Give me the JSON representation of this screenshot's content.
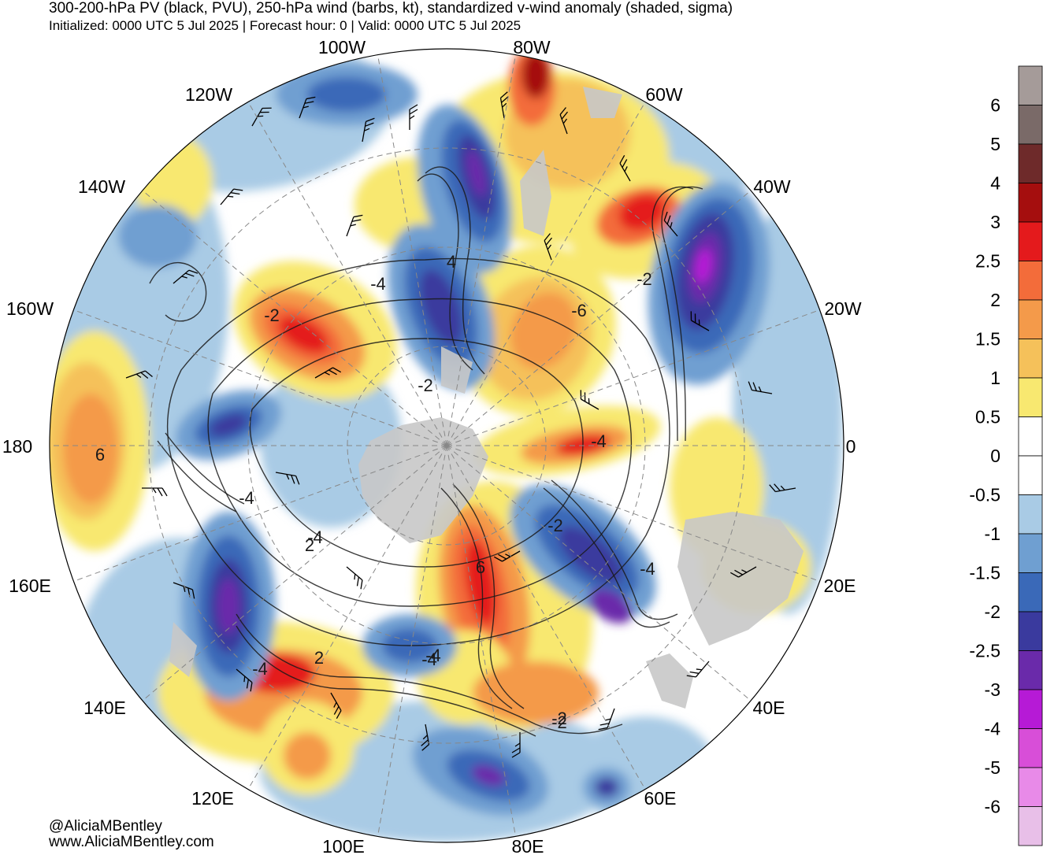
{
  "title": "300-200-hPa PV (black, PVU), 250-hPa wind (barbs, kt), standardized v-wind anomaly (shaded, sigma)",
  "subtitle": "Initialized: 0000 UTC 5 Jul 2025 | Forecast hour: 0 | Valid: 0000 UTC 5 Jul 2025",
  "credits": [
    "@AliciaMBentley",
    "www.AliciaMBentley.com"
  ],
  "longitude_labels": [
    {
      "text": "100W",
      "name": "lon-label-100w"
    },
    {
      "text": "80W",
      "name": "lon-label-80w"
    },
    {
      "text": "120W",
      "name": "lon-label-120w"
    },
    {
      "text": "60W",
      "name": "lon-label-60w"
    },
    {
      "text": "140W",
      "name": "lon-label-140w"
    },
    {
      "text": "40W",
      "name": "lon-label-40w"
    },
    {
      "text": "160W",
      "name": "lon-label-160w"
    },
    {
      "text": "20W",
      "name": "lon-label-20w"
    },
    {
      "text": "180",
      "name": "lon-label-180"
    },
    {
      "text": "0",
      "name": "lon-label-0"
    },
    {
      "text": "160E",
      "name": "lon-label-160e"
    },
    {
      "text": "20E",
      "name": "lon-label-20e"
    },
    {
      "text": "140E",
      "name": "lon-label-140e"
    },
    {
      "text": "40E",
      "name": "lon-label-40e"
    },
    {
      "text": "120E",
      "name": "lon-label-120e"
    },
    {
      "text": "60E",
      "name": "lon-label-60e"
    },
    {
      "text": "100E",
      "name": "lon-label-100e"
    },
    {
      "text": "80E",
      "name": "lon-label-80e"
    }
  ],
  "pv_contour_labels": [
    "-4",
    "4",
    "-4",
    "-2",
    "-6",
    "-2",
    "-2",
    "6",
    "-4",
    "-4",
    "-4",
    "-2",
    "2",
    "6",
    "-2",
    "-4",
    "-4",
    "2",
    "-4",
    "-2"
  ],
  "colorbar": {
    "labels": [
      "6",
      "5",
      "4",
      "3",
      "2.5",
      "2",
      "1.5",
      "1",
      "0.5",
      "0",
      "-0.5",
      "-1",
      "-1.5",
      "-2",
      "-2.5",
      "-3",
      "-4",
      "-5",
      "-6"
    ],
    "colors": [
      "#a59b99",
      "#7a6a68",
      "#6e2a2a",
      "#a50e0e",
      "#e41a1c",
      "#f36c3a",
      "#f49a4a",
      "#f5c15a",
      "#f8e870",
      "#ffffff",
      "#ffffff",
      "#a9cbe5",
      "#6f9fd1",
      "#3a69b8",
      "#3a3a9e",
      "#6a2aaa",
      "#b61ad6",
      "#d84ed8",
      "#e88ae8",
      "#e8bfe8"
    ]
  },
  "colors": {
    "land": "#c8c8c8",
    "contour": "#1a1a1a",
    "grid": "#888888"
  }
}
